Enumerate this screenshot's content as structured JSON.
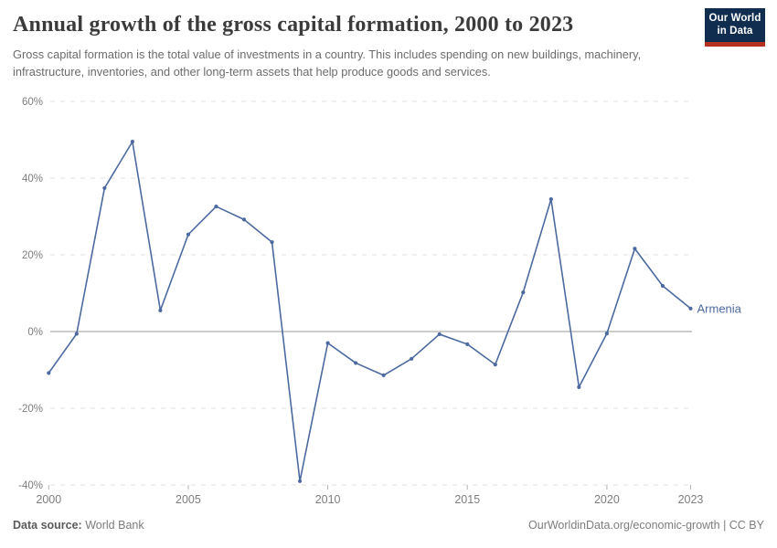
{
  "header": {
    "title": "Annual growth of the gross capital formation, 2000 to 2023",
    "subtitle": "Gross capital formation is the total value of investments in a country. This includes spending on new buildings, machinery, infrastructure, inventories, and other long-term assets that help produce goods and services.",
    "logo": {
      "line1": "Our World",
      "line2": "in Data",
      "bg_color": "#102d50",
      "stripe_color": "#b5301f",
      "text_color": "#ffffff"
    }
  },
  "chart_data": {
    "type": "line",
    "title": "Annual growth of the gross capital formation, 2000 to 2023",
    "xlabel": "",
    "ylabel": "",
    "xlim": [
      2000,
      2023
    ],
    "ylim": [
      -40,
      60
    ],
    "grid": "horizontal-dashed",
    "zero_line": true,
    "legend_position": "end-of-line-label",
    "x_ticks": [
      2000,
      2005,
      2010,
      2015,
      2020,
      2023
    ],
    "x_tick_labels": [
      "2000",
      "2005",
      "2010",
      "2015",
      "2020",
      "2023"
    ],
    "y_ticks": [
      60,
      40,
      20,
      0,
      -20,
      -40
    ],
    "y_tick_labels": [
      "60%",
      "40%",
      "20%",
      "0%",
      "-20%",
      "-40%"
    ],
    "series": [
      {
        "name": "Armenia",
        "color": "#4c6a9f",
        "x": [
          2000,
          2001,
          2002,
          2003,
          2004,
          2005,
          2006,
          2007,
          2008,
          2009,
          2010,
          2011,
          2012,
          2013,
          2014,
          2015,
          2016,
          2017,
          2018,
          2019,
          2020,
          2021,
          2022,
          2023
        ],
        "values": [
          -10.8,
          -0.6,
          37.4,
          49.5,
          5.5,
          25.3,
          32.6,
          29.2,
          23.3,
          -39.0,
          -3.0,
          -8.2,
          -11.4,
          -7.1,
          -0.7,
          -3.3,
          -8.6,
          10.2,
          34.5,
          -14.5,
          -0.5,
          21.6,
          11.9,
          6.0
        ]
      }
    ],
    "colors": {
      "gridline": "#e0e0e0",
      "zero_line": "#9a9a9a",
      "tick_label": "#7e7e7e",
      "tick_mark": "#b3b3b3"
    }
  },
  "footer": {
    "source_label": "Data source:",
    "source_value": "World Bank",
    "right_text": "OurWorldinData.org/economic-growth | CC BY"
  }
}
